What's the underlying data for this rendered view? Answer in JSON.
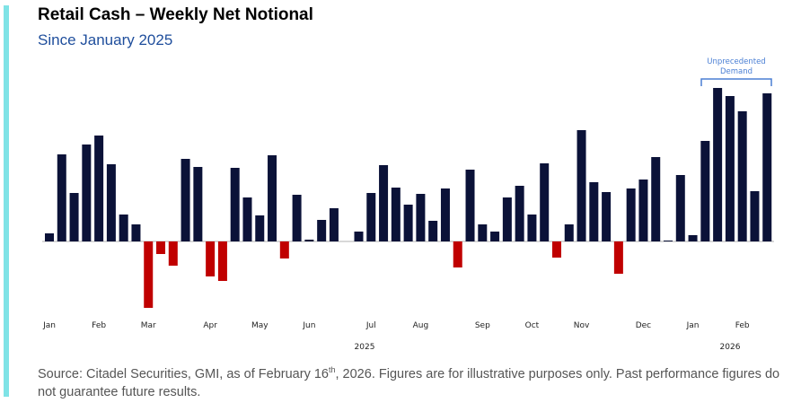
{
  "chart_data": {
    "type": "bar",
    "title": "Retail Cash – Weekly Net Notional",
    "subtitle": "Since January 2025",
    "categories": [
      "Jan",
      null,
      null,
      null,
      "Feb",
      null,
      null,
      null,
      "Mar",
      null,
      null,
      null,
      null,
      "Apr",
      null,
      null,
      null,
      "May",
      null,
      null,
      null,
      "Jun",
      null,
      null,
      null,
      null,
      "Jul",
      null,
      null,
      null,
      "Aug",
      null,
      null,
      null,
      null,
      "Sep",
      null,
      null,
      null,
      "Oct",
      null,
      null,
      null,
      "Nov",
      null,
      null,
      null,
      null,
      "Dec",
      null,
      null,
      null,
      "Jan",
      null,
      null,
      null,
      "Feb",
      null,
      null
    ],
    "values": [
      9,
      97,
      54,
      108,
      118,
      86,
      30,
      19,
      -74,
      -14,
      -27,
      92,
      83,
      -39,
      -44,
      82,
      49,
      29,
      96,
      -19,
      52,
      2,
      24,
      37,
      0,
      11,
      54,
      85,
      60,
      41,
      53,
      23,
      59,
      -29,
      80,
      19,
      11,
      49,
      62,
      30,
      87,
      -18,
      19,
      124,
      66,
      55,
      -36,
      59,
      69,
      94,
      1,
      74,
      7,
      112,
      171,
      162,
      145,
      56,
      165
    ],
    "year_labels": [
      "2025",
      "2026"
    ],
    "colors": {
      "positive": "#0b1238",
      "negative": "#c00000"
    },
    "annotation": [
      "Unprecedented",
      "Demand"
    ],
    "source": [
      "Source: Citadel Securities, GMI, as of February 16",
      "th",
      ", 2026. Figures are for illustrative purposes only. Past performance figures do not guarantee future results."
    ]
  }
}
